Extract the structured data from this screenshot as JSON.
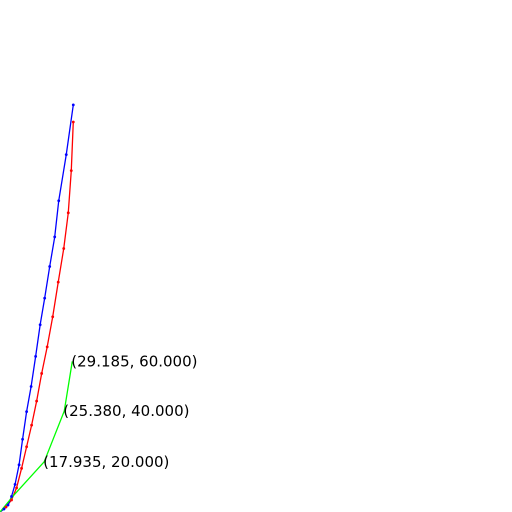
{
  "chart_data": {
    "type": "line",
    "title": "",
    "xlabel": "",
    "ylabel": "",
    "grid": false,
    "legend": "none",
    "xlim": [
      0,
      102
    ],
    "ylim": [
      0,
      102
    ],
    "series": [
      {
        "color": "#ff0000",
        "points": [
          [
            0,
            0
          ],
          [
            1.2,
            1.0
          ],
          [
            2.3,
            2.4
          ],
          [
            3.3,
            4.8
          ],
          [
            4.3,
            8.7
          ],
          [
            5.3,
            13.0
          ],
          [
            6.3,
            17.3
          ],
          [
            7.3,
            22.1
          ],
          [
            8.3,
            27.6
          ],
          [
            9.4,
            32.9
          ],
          [
            10.5,
            38.9
          ],
          [
            11.6,
            45.8
          ],
          [
            12.7,
            52.5
          ],
          [
            13.6,
            59.6
          ],
          [
            14.2,
            68.0
          ],
          [
            14.6,
            77.7
          ]
        ]
      },
      {
        "color": "#0000ff",
        "points": [
          [
            0,
            0
          ],
          [
            0.8,
            0.6
          ],
          [
            1.6,
            1.4
          ],
          [
            2.3,
            3.1
          ],
          [
            3.0,
            5.5
          ],
          [
            3.8,
            9.4
          ],
          [
            4.5,
            14.5
          ],
          [
            5.3,
            20.0
          ],
          [
            6.2,
            25.0
          ],
          [
            7.1,
            31.0
          ],
          [
            8.0,
            37.3
          ],
          [
            8.9,
            42.6
          ],
          [
            9.9,
            48.9
          ],
          [
            10.9,
            54.8
          ],
          [
            11.7,
            62.0
          ],
          [
            13.2,
            71.2
          ],
          [
            14.6,
            81.1
          ]
        ]
      },
      {
        "color": "#00ff00",
        "points": [
          [
            0,
            0
          ],
          [
            2.8,
            3.4
          ],
          [
            8.8,
            10.0
          ],
          [
            12.8,
            20.1
          ],
          [
            14.4,
            30.0
          ]
        ],
        "labels": [
          {
            "text": "(17.935, 20.000)",
            "x": 8.8,
            "y": 10.0
          },
          {
            "text": "(25.380, 40.000)",
            "x": 12.8,
            "y": 20.1
          },
          {
            "text": "(29.185, 60.000)",
            "x": 14.4,
            "y": 30.0
          }
        ]
      }
    ]
  }
}
